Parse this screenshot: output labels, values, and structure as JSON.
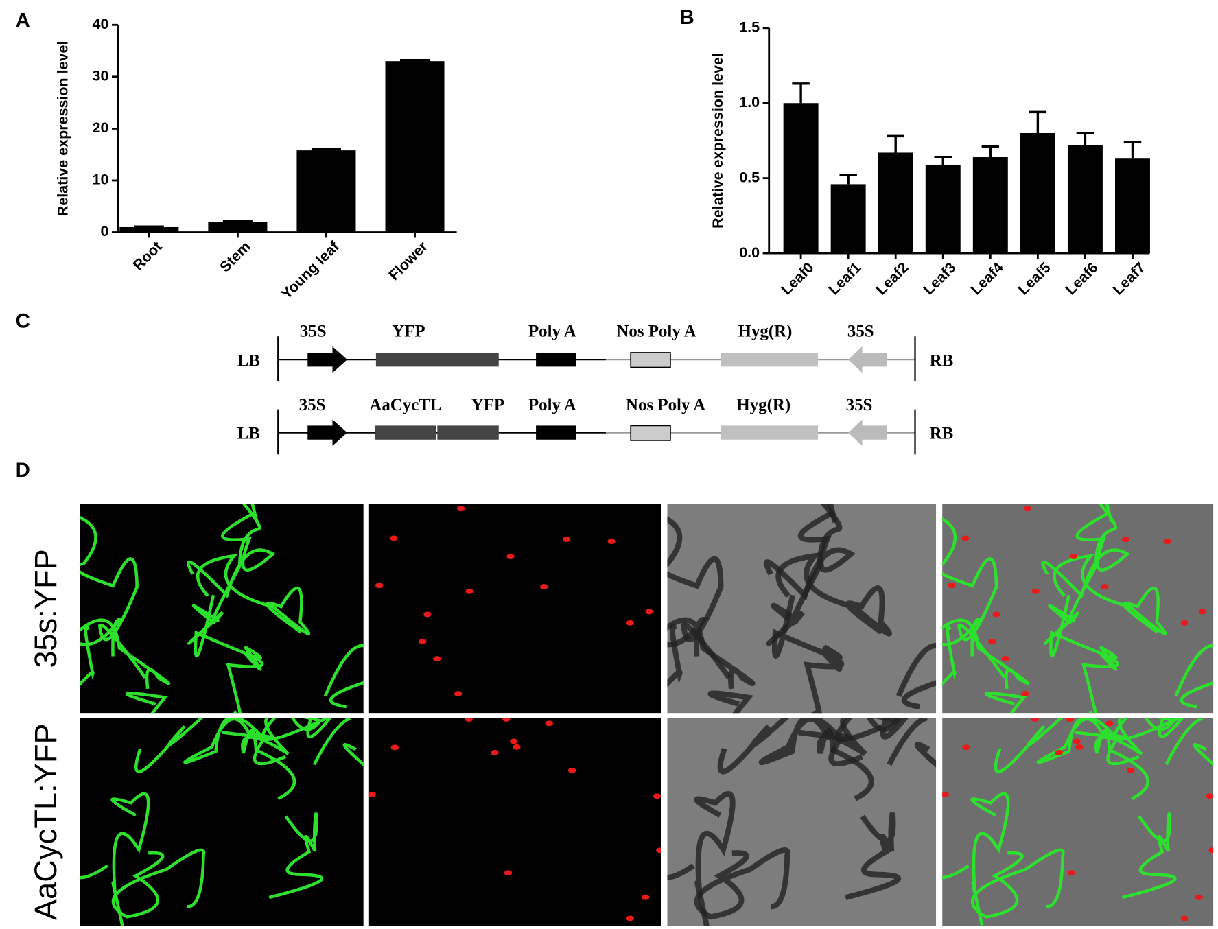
{
  "chart_data": [
    {
      "type": "bar",
      "panel_label": "A",
      "ylabel": "Relative expression level",
      "categories": [
        "Root",
        "Stem",
        "Young leaf",
        "Flower"
      ],
      "values": [
        1,
        2,
        15.8,
        33
      ],
      "errors": [
        0.1,
        0.1,
        0.2,
        0.2
      ],
      "color": "#000000",
      "ylim": [
        0,
        40
      ],
      "yticks": [
        0,
        10,
        20,
        30,
        40
      ]
    },
    {
      "type": "bar",
      "panel_label": "B",
      "ylabel": "Relative expression level",
      "categories": [
        "Leaf0",
        "Leaf1",
        "Leaf2",
        "Leaf3",
        "Leaf4",
        "Leaf5",
        "Leaf6",
        "Leaf7"
      ],
      "values": [
        1.0,
        0.46,
        0.67,
        0.59,
        0.64,
        0.8,
        0.72,
        0.63
      ],
      "errors": [
        0.13,
        0.06,
        0.11,
        0.05,
        0.07,
        0.14,
        0.08,
        0.11
      ],
      "color": "#000000",
      "ylim": [
        0,
        1.5
      ],
      "yticks": [
        {
          "value": 0,
          "label": "0.0"
        },
        0.5,
        {
          "value": 1,
          "label": "1.0"
        },
        1.5
      ]
    }
  ],
  "construct_diagram": {
    "panel_label": "C",
    "constructs": [
      {
        "left_border": "LB",
        "right_border": "RB",
        "elements": [
          "35S",
          "YFP",
          "Poly A",
          "Nos Poly A",
          "Hyg(R)",
          "35S"
        ]
      },
      {
        "left_border": "LB",
        "right_border": "RB",
        "elements": [
          "35S",
          "AaCycTL",
          "YFP",
          "Poly A",
          "Nos Poly A",
          "Hyg(R)",
          "35S"
        ]
      }
    ]
  },
  "microscopy": {
    "panel_label": "D",
    "row_labels": [
      "35s:YFP",
      "AaCycTL:YFP"
    ]
  }
}
